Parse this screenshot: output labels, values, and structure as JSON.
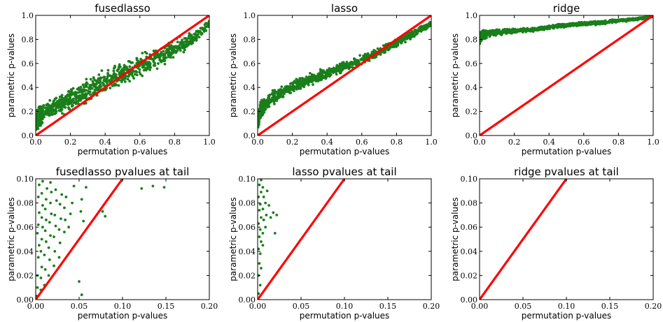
{
  "chart_data": [
    {
      "type": "scatter",
      "title": "fusedlasso",
      "xlabel": "permutation p-values",
      "ylabel": "parametric p-values",
      "xlim": [
        0.0,
        1.0
      ],
      "ylim": [
        0.0,
        1.0
      ],
      "xticks": [
        "0.0",
        "0.2",
        "0.4",
        "0.6",
        "0.8",
        "1.0"
      ],
      "yticks": [
        "0.0",
        "0.2",
        "0.4",
        "0.6",
        "0.8",
        "1.0"
      ],
      "grid": false,
      "series": [
        {
          "kind": "points",
          "color": "#1a7f1a",
          "shape": "spread band",
          "center": [
            [
              0.0,
              0.12
            ],
            [
              0.05,
              0.2
            ],
            [
              0.2,
              0.3
            ],
            [
              0.4,
              0.45
            ],
            [
              0.6,
              0.58
            ],
            [
              0.8,
              0.72
            ],
            [
              0.9,
              0.8
            ],
            [
              1.0,
              0.93
            ]
          ],
          "spread": [
            0.09,
            0.1,
            0.12,
            0.12,
            0.12,
            0.1,
            0.08,
            0.04
          ]
        },
        {
          "kind": "reference-line",
          "color": "#ff0000",
          "points": [
            [
              0.0,
              0.0
            ],
            [
              1.0,
              1.0
            ]
          ]
        }
      ]
    },
    {
      "type": "scatter",
      "title": "lasso",
      "xlabel": "permutation p-values",
      "ylabel": "parametric p-values",
      "xlim": [
        0.0,
        1.0
      ],
      "ylim": [
        0.0,
        1.0
      ],
      "xticks": [
        "0.0",
        "0.2",
        "0.4",
        "0.6",
        "0.8",
        "1.0"
      ],
      "yticks": [
        "0.0",
        "0.2",
        "0.4",
        "0.6",
        "0.8",
        "1.0"
      ],
      "grid": false,
      "series": [
        {
          "kind": "points",
          "color": "#1a7f1a",
          "shape": "spread band",
          "center": [
            [
              0.0,
              0.12
            ],
            [
              0.02,
              0.22
            ],
            [
              0.1,
              0.33
            ],
            [
              0.2,
              0.4
            ],
            [
              0.4,
              0.52
            ],
            [
              0.6,
              0.63
            ],
            [
              0.8,
              0.77
            ],
            [
              1.0,
              0.93
            ]
          ],
          "spread": [
            0.08,
            0.08,
            0.07,
            0.07,
            0.06,
            0.05,
            0.05,
            0.03
          ]
        },
        {
          "kind": "reference-line",
          "color": "#ff0000",
          "points": [
            [
              0.0,
              0.0
            ],
            [
              1.0,
              1.0
            ]
          ]
        }
      ]
    },
    {
      "type": "scatter",
      "title": "ridge",
      "xlabel": "permutation p-values",
      "ylabel": "parametric p-values",
      "xlim": [
        0.0,
        1.0
      ],
      "ylim": [
        0.0,
        1.0
      ],
      "xticks": [
        "0.0",
        "0.2",
        "0.4",
        "0.6",
        "0.8",
        "1.0"
      ],
      "yticks": [
        "0.0",
        "0.2",
        "0.4",
        "0.6",
        "0.8",
        "1.0"
      ],
      "grid": false,
      "series": [
        {
          "kind": "points",
          "color": "#1a7f1a",
          "shape": "spread band",
          "center": [
            [
              0.0,
              0.8
            ],
            [
              0.02,
              0.84
            ],
            [
              0.1,
              0.86
            ],
            [
              0.3,
              0.88
            ],
            [
              0.5,
              0.92
            ],
            [
              0.7,
              0.94
            ],
            [
              0.9,
              0.97
            ],
            [
              1.0,
              0.99
            ]
          ],
          "spread": [
            0.07,
            0.04,
            0.03,
            0.02,
            0.02,
            0.02,
            0.015,
            0.01
          ]
        },
        {
          "kind": "reference-line",
          "color": "#ff0000",
          "points": [
            [
              0.0,
              0.0
            ],
            [
              1.0,
              1.0
            ]
          ]
        }
      ]
    },
    {
      "type": "scatter",
      "title": "fusedlasso pvalues at tail",
      "xlabel": "permutation p-values",
      "ylabel": "parametric p-values",
      "xlim": [
        0.0,
        0.2
      ],
      "ylim": [
        0.0,
        0.1
      ],
      "xticks": [
        "0.00",
        "0.05",
        "0.10",
        "0.15",
        "0.20"
      ],
      "yticks": [
        "0.00",
        "0.02",
        "0.04",
        "0.06",
        "0.08",
        "0.10"
      ],
      "grid": false,
      "series": [
        {
          "kind": "points",
          "color": "#1a7f1a",
          "points": [
            [
              0.001,
              0.003
            ],
            [
              0.002,
              0.01
            ],
            [
              0.002,
              0.02
            ],
            [
              0.003,
              0.035
            ],
            [
              0.004,
              0.045
            ],
            [
              0.002,
              0.055
            ],
            [
              0.003,
              0.062
            ],
            [
              0.004,
              0.072
            ],
            [
              0.003,
              0.085
            ],
            [
              0.004,
              0.095
            ],
            [
              0.006,
              0.008
            ],
            [
              0.006,
              0.018
            ],
            [
              0.007,
              0.027
            ],
            [
              0.006,
              0.04
            ],
            [
              0.007,
              0.05
            ],
            [
              0.008,
              0.06
            ],
            [
              0.007,
              0.068
            ],
            [
              0.008,
              0.078
            ],
            [
              0.007,
              0.088
            ],
            [
              0.008,
              0.098
            ],
            [
              0.01,
              0.012
            ],
            [
              0.011,
              0.025
            ],
            [
              0.01,
              0.037
            ],
            [
              0.012,
              0.048
            ],
            [
              0.011,
              0.057
            ],
            [
              0.012,
              0.066
            ],
            [
              0.011,
              0.075
            ],
            [
              0.012,
              0.083
            ],
            [
              0.013,
              0.092
            ],
            [
              0.015,
              0.02
            ],
            [
              0.016,
              0.033
            ],
            [
              0.015,
              0.043
            ],
            [
              0.017,
              0.053
            ],
            [
              0.016,
              0.064
            ],
            [
              0.018,
              0.071
            ],
            [
              0.017,
              0.08
            ],
            [
              0.018,
              0.089
            ],
            [
              0.017,
              0.097
            ],
            [
              0.021,
              0.028
            ],
            [
              0.022,
              0.04
            ],
            [
              0.021,
              0.052
            ],
            [
              0.023,
              0.061
            ],
            [
              0.022,
              0.07
            ],
            [
              0.024,
              0.082
            ],
            [
              0.023,
              0.091
            ],
            [
              0.027,
              0.035
            ],
            [
              0.028,
              0.047
            ],
            [
              0.027,
              0.058
            ],
            [
              0.029,
              0.067
            ],
            [
              0.028,
              0.079
            ],
            [
              0.03,
              0.087
            ],
            [
              0.033,
              0.056
            ],
            [
              0.034,
              0.066
            ],
            [
              0.033,
              0.076
            ],
            [
              0.035,
              0.085
            ],
            [
              0.038,
              0.06
            ],
            [
              0.04,
              0.071
            ],
            [
              0.042,
              0.08
            ],
            [
              0.044,
              0.094
            ],
            [
              0.052,
              0.073
            ],
            [
              0.053,
              0.083
            ],
            [
              0.055,
              0.065
            ],
            [
              0.05,
              0.015
            ],
            [
              0.053,
              0.004
            ],
            [
              0.058,
              0.093
            ],
            [
              0.077,
              0.073
            ],
            [
              0.08,
              0.069
            ],
            [
              0.122,
              0.092
            ],
            [
              0.135,
              0.094
            ],
            [
              0.148,
              0.093
            ]
          ]
        },
        {
          "kind": "reference-line",
          "color": "#ff0000",
          "points": [
            [
              0.0,
              0.0
            ],
            [
              0.1,
              0.1
            ]
          ]
        }
      ]
    },
    {
      "type": "scatter",
      "title": "lasso pvalues at tail",
      "xlabel": "permutation p-values",
      "ylabel": "parametric p-values",
      "xlim": [
        0.0,
        0.2
      ],
      "ylim": [
        0.0,
        0.1
      ],
      "xticks": [
        "0.00",
        "0.05",
        "0.10",
        "0.15",
        "0.20"
      ],
      "yticks": [
        "0.00",
        "0.02",
        "0.04",
        "0.06",
        "0.08",
        "0.10"
      ],
      "grid": false,
      "series": [
        {
          "kind": "points",
          "color": "#1a7f1a",
          "points": [
            [
              0.001,
              0.005
            ],
            [
              0.001,
              0.02
            ],
            [
              0.002,
              0.03
            ],
            [
              0.001,
              0.042
            ],
            [
              0.002,
              0.052
            ],
            [
              0.001,
              0.063
            ],
            [
              0.002,
              0.074
            ],
            [
              0.001,
              0.085
            ],
            [
              0.002,
              0.095
            ],
            [
              0.003,
              0.012
            ],
            [
              0.004,
              0.026
            ],
            [
              0.003,
              0.038
            ],
            [
              0.004,
              0.048
            ],
            [
              0.003,
              0.058
            ],
            [
              0.004,
              0.068
            ],
            [
              0.003,
              0.079
            ],
            [
              0.004,
              0.089
            ],
            [
              0.004,
              0.099
            ],
            [
              0.006,
              0.045
            ],
            [
              0.006,
              0.055
            ],
            [
              0.007,
              0.066
            ],
            [
              0.006,
              0.075
            ],
            [
              0.007,
              0.085
            ],
            [
              0.006,
              0.093
            ],
            [
              0.009,
              0.06
            ],
            [
              0.01,
              0.07
            ],
            [
              0.009,
              0.08
            ],
            [
              0.011,
              0.09
            ],
            [
              0.013,
              0.078
            ],
            [
              0.015,
              0.068
            ],
            [
              0.018,
              0.072
            ],
            [
              0.02,
              0.055
            ],
            [
              0.022,
              0.07
            ]
          ]
        },
        {
          "kind": "reference-line",
          "color": "#ff0000",
          "points": [
            [
              0.0,
              0.0
            ],
            [
              0.1,
              0.1
            ]
          ]
        }
      ]
    },
    {
      "type": "scatter",
      "title": "ridge pvalues at tail",
      "xlabel": "permutation p-values",
      "ylabel": "parametric p-values",
      "xlim": [
        0.0,
        0.2
      ],
      "ylim": [
        0.0,
        0.1
      ],
      "xticks": [
        "0.00",
        "0.05",
        "0.10",
        "0.15",
        "0.20"
      ],
      "yticks": [
        "0.00",
        "0.02",
        "0.04",
        "0.06",
        "0.08",
        "0.10"
      ],
      "grid": false,
      "series": [
        {
          "kind": "points",
          "color": "#1a7f1a",
          "points": []
        },
        {
          "kind": "reference-line",
          "color": "#ff0000",
          "points": [
            [
              0.0,
              0.0
            ],
            [
              0.1,
              0.1
            ]
          ]
        }
      ]
    }
  ]
}
